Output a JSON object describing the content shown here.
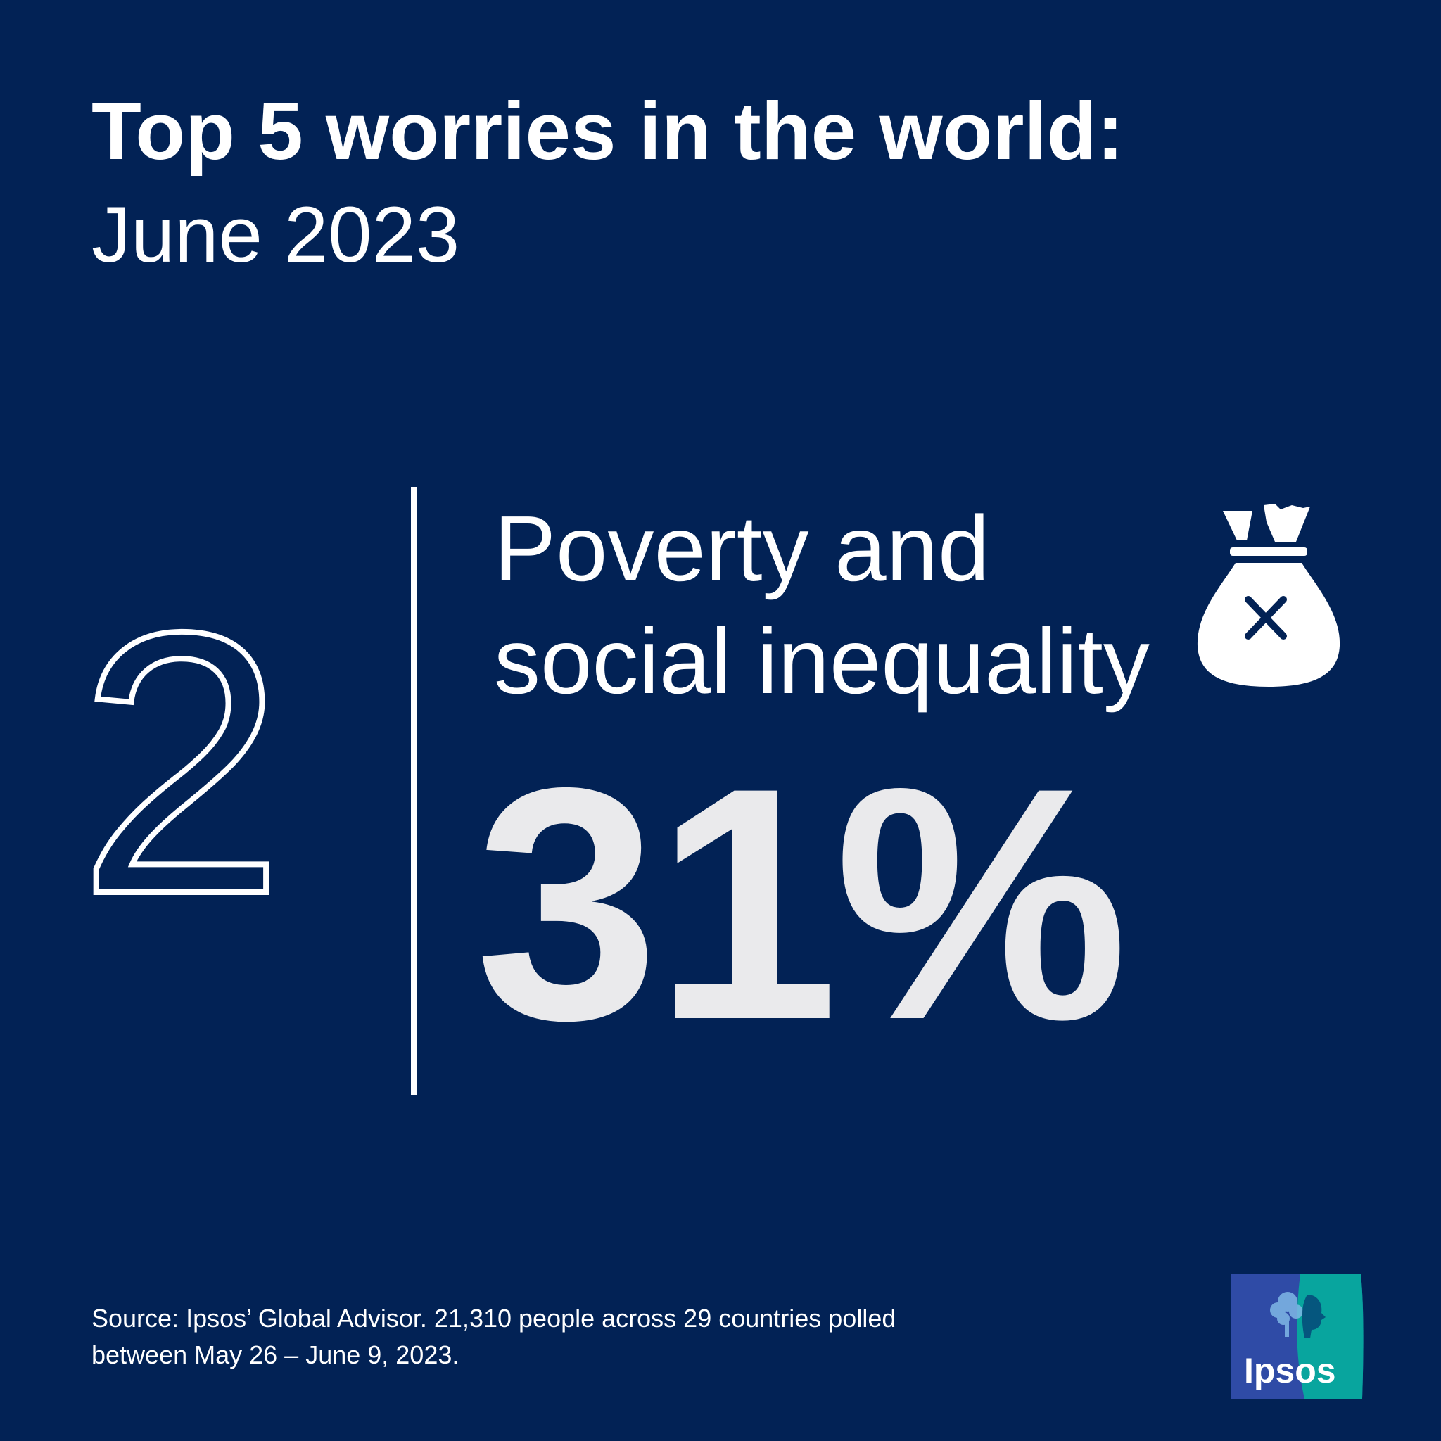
{
  "header": {
    "title": "Top 5 worries in the world:",
    "subtitle": "June 2023"
  },
  "worry": {
    "rank": "2",
    "label_line1": "Poverty and",
    "label_line2": "social inequality",
    "percentage": "31%",
    "icon": "money-bag-x-icon"
  },
  "footer": {
    "source_line1": "Source: Ipsos’ Global Advisor. 21,310 people across 29 countries polled",
    "source_line2": "between May 26 – June 9, 2023."
  },
  "logo": {
    "text": "Ipsos",
    "colors": {
      "left": "#2f4ba6",
      "right": "#08a59e"
    }
  },
  "colors": {
    "background": "#022255",
    "text": "#ffffff",
    "percentage": "#eaeaec"
  }
}
